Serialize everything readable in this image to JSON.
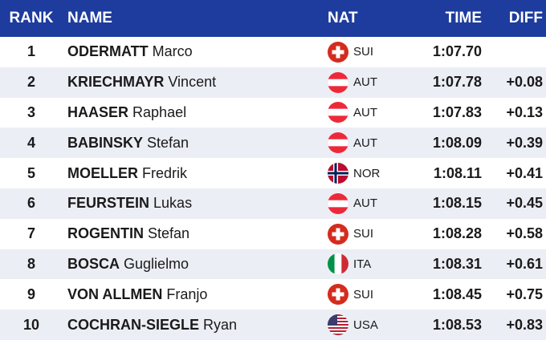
{
  "header": {
    "rank": "RANK",
    "name": "NAME",
    "nat": "NAT",
    "time": "TIME",
    "diff": "DIFF"
  },
  "colors": {
    "header_bg": "#1d3c9e",
    "row_alt_bg": "#eceef5"
  },
  "rows": [
    {
      "rank": "1",
      "surname": "ODERMATT",
      "firstname": "Marco",
      "nat": "SUI",
      "flag": "switzerland-flag-icon",
      "time": "1:07.70",
      "diff": ""
    },
    {
      "rank": "2",
      "surname": "KRIECHMAYR",
      "firstname": "Vincent",
      "nat": "AUT",
      "flag": "austria-flag-icon",
      "time": "1:07.78",
      "diff": "+0.08"
    },
    {
      "rank": "3",
      "surname": "HAASER",
      "firstname": "Raphael",
      "nat": "AUT",
      "flag": "austria-flag-icon",
      "time": "1:07.83",
      "diff": "+0.13"
    },
    {
      "rank": "4",
      "surname": "BABINSKY",
      "firstname": "Stefan",
      "nat": "AUT",
      "flag": "austria-flag-icon",
      "time": "1:08.09",
      "diff": "+0.39"
    },
    {
      "rank": "5",
      "surname": "MOELLER",
      "firstname": "Fredrik",
      "nat": "NOR",
      "flag": "norway-flag-icon",
      "time": "1:08.11",
      "diff": "+0.41"
    },
    {
      "rank": "6",
      "surname": "FEURSTEIN",
      "firstname": "Lukas",
      "nat": "AUT",
      "flag": "austria-flag-icon",
      "time": "1:08.15",
      "diff": "+0.45"
    },
    {
      "rank": "7",
      "surname": "ROGENTIN",
      "firstname": "Stefan",
      "nat": "SUI",
      "flag": "switzerland-flag-icon",
      "time": "1:08.28",
      "diff": "+0.58"
    },
    {
      "rank": "8",
      "surname": "BOSCA",
      "firstname": "Guglielmo",
      "nat": "ITA",
      "flag": "italy-flag-icon",
      "time": "1:08.31",
      "diff": "+0.61"
    },
    {
      "rank": "9",
      "surname": "VON ALLMEN",
      "firstname": "Franjo",
      "nat": "SUI",
      "flag": "switzerland-flag-icon",
      "time": "1:08.45",
      "diff": "+0.75"
    },
    {
      "rank": "10",
      "surname": "COCHRAN-SIEGLE",
      "firstname": "Ryan",
      "nat": "USA",
      "flag": "usa-flag-icon",
      "time": "1:08.53",
      "diff": "+0.83"
    }
  ]
}
